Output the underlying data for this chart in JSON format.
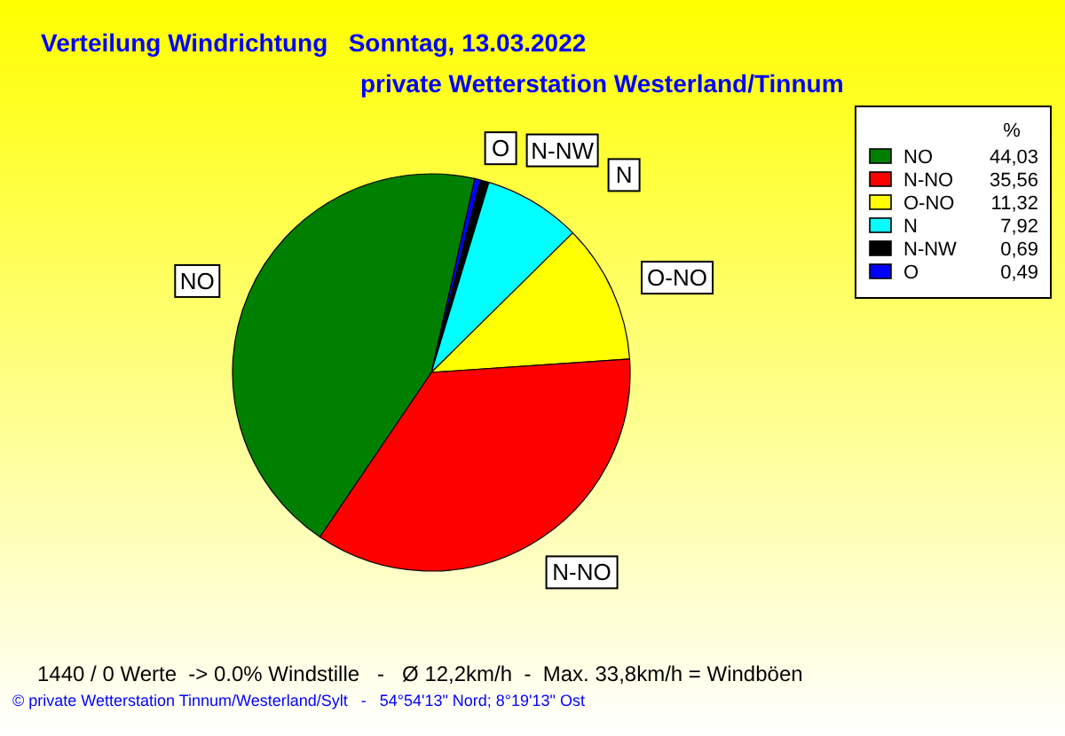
{
  "chart_data": {
    "type": "pie",
    "title": "Verteilung Windrichtung   Sonntag, 13.03.2022",
    "subtitle": "private Wetterstation Westerland/Tinnum",
    "legend_title": "%",
    "categories": [
      "NO",
      "N-NO",
      "O-NO",
      "N",
      "N-NW",
      "O"
    ],
    "values": [
      44.03,
      35.56,
      11.32,
      7.92,
      0.69,
      0.49
    ],
    "value_labels": [
      "44,03",
      "35,56",
      "11,32",
      "7,92",
      "0,69",
      "0,49"
    ],
    "colors": [
      "#008000",
      "#ff0000",
      "#ffff00",
      "#00ffff",
      "#000000",
      "#0000ff"
    ],
    "legend": "top right",
    "annotations": [
      "1440 / 0 Werte  -> 0.0% Windstille   -   Ø 12,2km/h  -  Max. 33,8km/h = Windböen",
      "© private Wetterstation Tinnum/Westerland/Sylt   -   54°54'13\" Nord; 8°19'13\" Ost"
    ]
  }
}
